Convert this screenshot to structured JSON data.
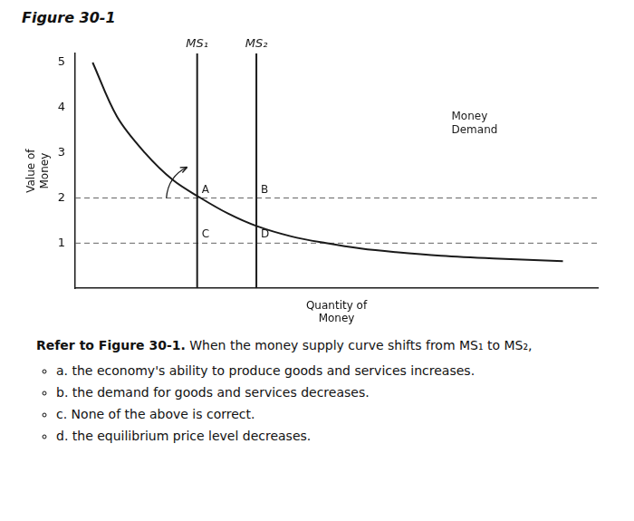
{
  "chart_data": {
    "type": "line",
    "title": "Figure 30-1",
    "xlabel": "Quantity of\nMoney",
    "ylabel": "Value of\nMoney",
    "x": [
      0.05,
      0.12,
      0.2,
      0.28,
      0.36,
      0.44,
      0.52,
      0.62,
      0.72,
      0.82,
      0.92,
      1.05,
      1.2,
      1.4
    ],
    "values": [
      5.0,
      3.8,
      3.0,
      2.4,
      2.0,
      1.65,
      1.38,
      1.15,
      1.0,
      0.88,
      0.8,
      0.72,
      0.66,
      0.6
    ],
    "color": "#1a1a1a",
    "demand_label": "Money\nDemand",
    "vertical_lines": [
      {
        "x": 0.35,
        "label": "MS₁"
      },
      {
        "x": 0.52,
        "label": "MS₂"
      }
    ],
    "horizontal_lines": [
      {
        "y": 2.0,
        "color": "#666666",
        "line_style": "dashed"
      },
      {
        "y": 1.0,
        "color": "#666666",
        "line_style": "dashed"
      }
    ],
    "points": [
      {
        "label": "A",
        "x": 0.35,
        "y": 2.0
      },
      {
        "label": "B",
        "x": 0.52,
        "y": 2.0
      },
      {
        "label": "C",
        "x": 0.35,
        "y": 1.0
      },
      {
        "label": "D",
        "x": 0.52,
        "y": 1.0
      }
    ],
    "xlim": [
      0,
      1.5
    ],
    "ylim": [
      0,
      5.2
    ],
    "yticks": [
      1,
      2,
      3,
      4,
      5
    ],
    "tick_labels": "y",
    "grid": false,
    "question_bold": "Refer to Figure 30-1.",
    "question": "When the money supply curve shifts from MS₁ to MS₂,",
    "choices": [
      "a. the economy's ability to produce goods and services increases.",
      "b. the demand for goods and services decreases.",
      "c. None of the above is correct.",
      "d. the equilibrium price level decreases."
    ]
  }
}
